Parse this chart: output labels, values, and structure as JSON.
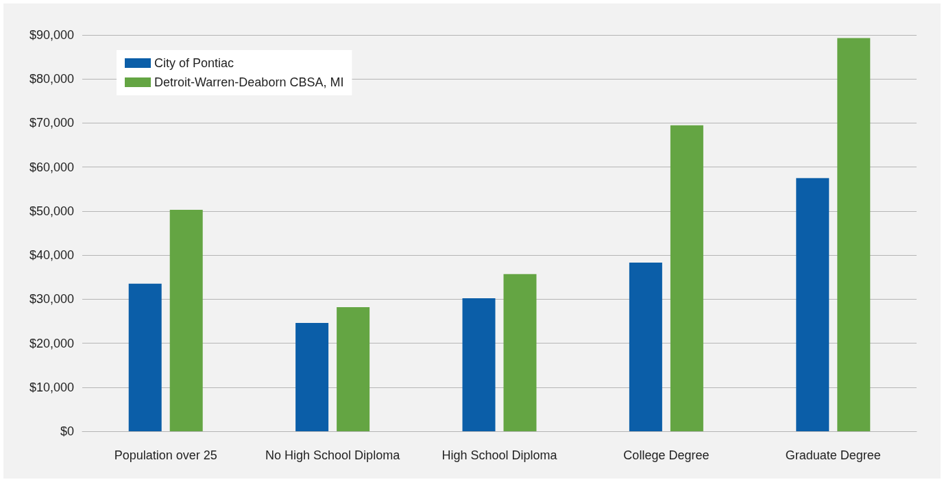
{
  "chart_data": {
    "type": "bar",
    "categories": [
      "Population over 25",
      "No High School Diploma",
      "High School Diploma",
      "College Degree",
      "Graduate Degree"
    ],
    "series": [
      {
        "name": "City of Pontiac",
        "color": "#0b5ea8",
        "values": [
          33500,
          24600,
          30200,
          38300,
          57500
        ]
      },
      {
        "name": "Detroit-Warren-Deaborn CBSA, MI",
        "color": "#64a543",
        "values": [
          50300,
          28200,
          35700,
          69500,
          89300
        ]
      }
    ],
    "ylim": [
      0,
      90000
    ],
    "yticks": [
      {
        "value": 0,
        "label": "$0"
      },
      {
        "value": 10000,
        "label": "$10,000"
      },
      {
        "value": 20000,
        "label": "$20,000"
      },
      {
        "value": 30000,
        "label": "$30,000"
      },
      {
        "value": 40000,
        "label": "$40,000"
      },
      {
        "value": 50000,
        "label": "$50,000"
      },
      {
        "value": 60000,
        "label": "$60,000"
      },
      {
        "value": 70000,
        "label": "$70,000"
      },
      {
        "value": 80000,
        "label": "$80,000"
      },
      {
        "value": 90000,
        "label": "$90,000"
      }
    ],
    "grid": true,
    "legend": "top left"
  }
}
